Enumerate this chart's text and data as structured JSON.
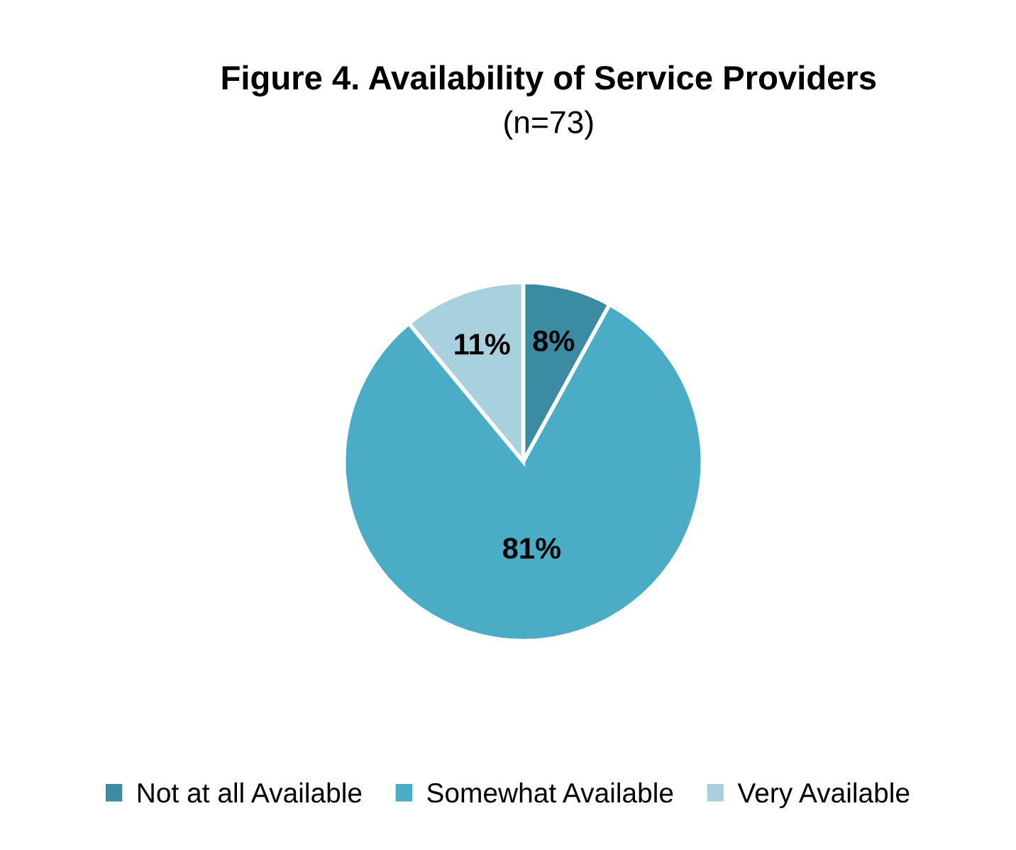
{
  "chart_data": {
    "type": "pie",
    "title": "Figure 4. Availability of Service Providers",
    "subtitle": "(n=73)",
    "categories": [
      "Not at all Available",
      "Somewhat Available",
      "Very Available"
    ],
    "values": [
      8,
      81,
      11
    ],
    "colors": [
      "#3b8ca2",
      "#4bacc6",
      "#a8d0dd"
    ],
    "value_labels": [
      "8%",
      "81%",
      "11%"
    ],
    "legend": "bottom"
  }
}
